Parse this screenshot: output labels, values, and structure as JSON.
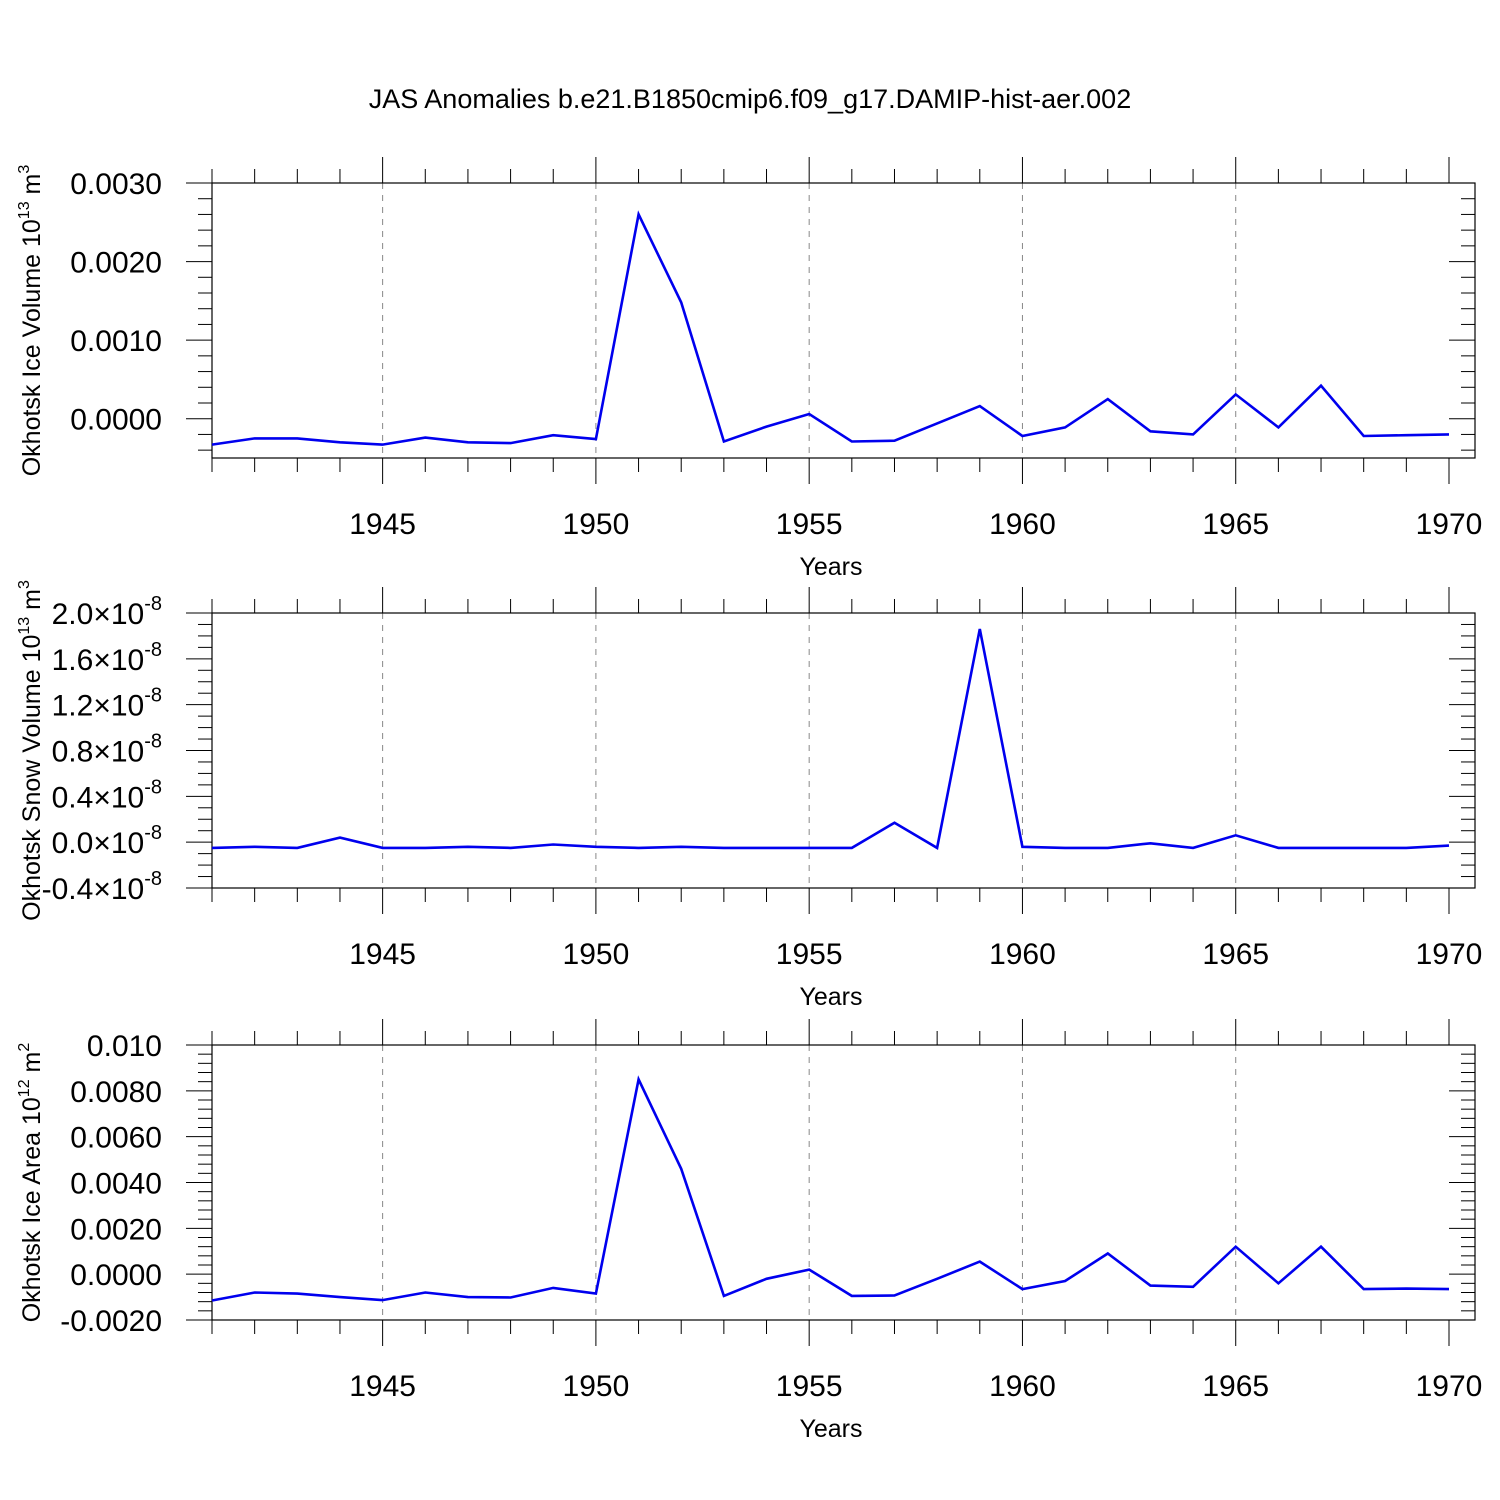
{
  "title": "JAS Anomalies b.e21.B1850cmip6.f09_g17.DAMIP-hist-aer.002",
  "chart_data": [
    {
      "type": "line",
      "ylabel": "Okhotsk Ice Volume 10",
      "ylabel_sup": "13",
      "ylabel_unit": " m",
      "ylabel_unit_sup": "3",
      "xlabel": "Years",
      "xlim": [
        1941,
        1970
      ],
      "ylim": [
        -0.0005,
        0.003
      ],
      "x_major_ticks": [
        1945,
        1950,
        1955,
        1960,
        1965,
        1970
      ],
      "x_tick_labels": [
        "1945",
        "1950",
        "1955",
        "1960",
        "1965",
        "1970"
      ],
      "y_major_ticks": [
        0.0,
        0.001,
        0.002,
        0.003
      ],
      "y_tick_labels": [
        "0.0000",
        "0.0010",
        "0.0020",
        "0.0030"
      ],
      "grid": "vertical-dashed",
      "x": [
        1941,
        1942,
        1943,
        1944,
        1945,
        1946,
        1947,
        1948,
        1949,
        1950,
        1951,
        1952,
        1953,
        1954,
        1955,
        1956,
        1957,
        1958,
        1959,
        1960,
        1961,
        1962,
        1963,
        1964,
        1965,
        1966,
        1967,
        1968,
        1969,
        1970
      ],
      "series": [
        {
          "values": [
            -0.00033,
            -0.00025,
            -0.00025,
            -0.0003,
            -0.00033,
            -0.00024,
            -0.0003,
            -0.00031,
            -0.00021,
            -0.00026,
            0.0026,
            0.00148,
            -0.00029,
            -0.0001,
            6e-05,
            -0.00029,
            -0.00028,
            -6e-05,
            0.00016,
            -0.00022,
            -0.00011,
            0.00025,
            -0.00016,
            -0.0002,
            0.00031,
            -0.00011,
            0.00042,
            -0.00022,
            -0.00021,
            -0.0002
          ],
          "color": "#0000ee"
        }
      ]
    },
    {
      "type": "line",
      "ylabel": "Okhotsk Snow Volume 10",
      "ylabel_sup": "13",
      "ylabel_unit": " m",
      "ylabel_unit_sup": "3",
      "xlabel": "Years",
      "xlim": [
        1941,
        1970
      ],
      "ylim": [
        -0.4,
        2.0
      ],
      "y_scale_note": "x10^-8",
      "x_major_ticks": [
        1945,
        1950,
        1955,
        1960,
        1965,
        1970
      ],
      "x_tick_labels": [
        "1945",
        "1950",
        "1955",
        "1960",
        "1965",
        "1970"
      ],
      "y_major_ticks": [
        -0.4,
        0.0,
        0.4,
        0.8,
        1.2,
        1.6,
        2.0
      ],
      "y_tick_mantissas": [
        "-0.4",
        "0.0",
        "0.4",
        "0.8",
        "1.2",
        "1.6",
        "2.0"
      ],
      "y_tick_exponent": "-8",
      "y_tick_times": "×10",
      "grid": "vertical-dashed",
      "x": [
        1941,
        1942,
        1943,
        1944,
        1945,
        1946,
        1947,
        1948,
        1949,
        1950,
        1951,
        1952,
        1953,
        1954,
        1955,
        1956,
        1957,
        1958,
        1959,
        1960,
        1961,
        1962,
        1963,
        1964,
        1965,
        1966,
        1967,
        1968,
        1969,
        1970
      ],
      "series": [
        {
          "values": [
            -0.05,
            -0.04,
            -0.05,
            0.04,
            -0.05,
            -0.05,
            -0.04,
            -0.05,
            -0.02,
            -0.04,
            -0.05,
            -0.04,
            -0.05,
            -0.05,
            -0.05,
            -0.05,
            0.17,
            -0.05,
            1.86,
            -0.04,
            -0.05,
            -0.05,
            -0.01,
            -0.05,
            0.06,
            -0.05,
            -0.05,
            -0.05,
            -0.05,
            -0.03
          ],
          "color": "#0000ee"
        }
      ]
    },
    {
      "type": "line",
      "ylabel": "Okhotsk Ice Area 10",
      "ylabel_sup": "12",
      "ylabel_unit": " m",
      "ylabel_unit_sup": "2",
      "xlabel": "Years",
      "xlim": [
        1941,
        1970
      ],
      "ylim": [
        -0.002,
        0.01
      ],
      "x_major_ticks": [
        1945,
        1950,
        1955,
        1960,
        1965,
        1970
      ],
      "x_tick_labels": [
        "1945",
        "1950",
        "1955",
        "1960",
        "1965",
        "1970"
      ],
      "y_major_ticks": [
        -0.002,
        0.0,
        0.002,
        0.004,
        0.006,
        0.008,
        0.01
      ],
      "y_tick_labels": [
        "-0.0020",
        "0.0000",
        "0.0020",
        "0.0040",
        "0.0060",
        "0.0080",
        "0.010"
      ],
      "grid": "vertical-dashed",
      "x": [
        1941,
        1942,
        1943,
        1944,
        1945,
        1946,
        1947,
        1948,
        1949,
        1950,
        1951,
        1952,
        1953,
        1954,
        1955,
        1956,
        1957,
        1958,
        1959,
        1960,
        1961,
        1962,
        1963,
        1964,
        1965,
        1966,
        1967,
        1968,
        1969,
        1970
      ],
      "series": [
        {
          "values": [
            -0.00115,
            -0.0008,
            -0.00085,
            -0.001,
            -0.00113,
            -0.0008,
            -0.001,
            -0.00102,
            -0.0006,
            -0.00085,
            0.0085,
            0.0046,
            -0.00095,
            -0.0002,
            0.0002,
            -0.00095,
            -0.00093,
            -0.0002,
            0.00055,
            -0.00065,
            -0.0003,
            0.0009,
            -0.0005,
            -0.00055,
            0.0012,
            -0.0004,
            0.0012,
            -0.00065,
            -0.00063,
            -0.00065
          ],
          "color": "#0000ee"
        }
      ]
    }
  ]
}
